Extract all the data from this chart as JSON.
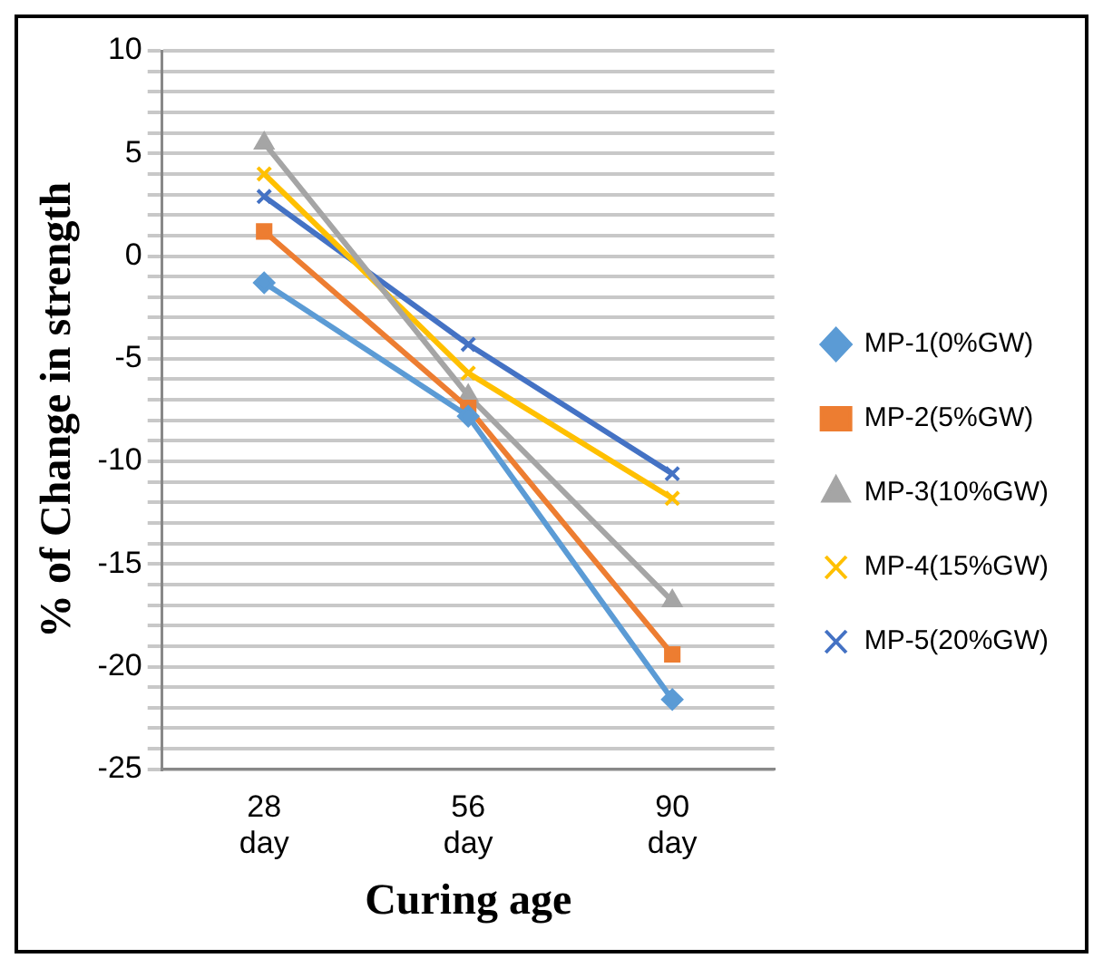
{
  "chart_data": {
    "type": "line",
    "xlabel": "Curing age",
    "ylabel": "% of Change in strength",
    "categories": [
      "28 day",
      "56 day",
      "90 day"
    ],
    "series": [
      {
        "name": "MP-1(0%GW)",
        "color": "#5b9bd5",
        "marker": "diamond",
        "values": [
          -1.3,
          -7.8,
          -21.6
        ]
      },
      {
        "name": "MP-2(5%GW)",
        "color": "#ed7d31",
        "marker": "square",
        "values": [
          1.2,
          -7.4,
          -19.4
        ]
      },
      {
        "name": "MP-3(10%GW)",
        "color": "#a5a5a5",
        "marker": "triangle",
        "values": [
          5.5,
          -6.8,
          -16.8
        ]
      },
      {
        "name": "MP-4(15%GW)",
        "color": "#ffc000",
        "marker": "cross",
        "values": [
          4.0,
          -5.7,
          -11.8
        ]
      },
      {
        "name": "MP-5(20%GW)",
        "color": "#4472c4",
        "marker": "cross",
        "values": [
          2.9,
          -4.3,
          -10.6
        ]
      }
    ],
    "ylim": [
      -25,
      10
    ],
    "yticks": [
      -25,
      {
        "value": -24,
        "label": null
      },
      {
        "value": -23,
        "label": null
      },
      {
        "value": -22,
        "label": null
      },
      {
        "value": -21,
        "label": null
      },
      -20,
      {
        "value": -19,
        "label": null
      },
      {
        "value": -18,
        "label": null
      },
      {
        "value": -17,
        "label": null
      },
      {
        "value": -16,
        "label": null
      },
      -15,
      {
        "value": -14,
        "label": null
      },
      {
        "value": -13,
        "label": null
      },
      {
        "value": -12,
        "label": null
      },
      {
        "value": -11,
        "label": null
      },
      -10,
      {
        "value": -9,
        "label": null
      },
      {
        "value": -8,
        "label": null
      },
      {
        "value": -7,
        "label": null
      },
      {
        "value": -6,
        "label": null
      },
      -5,
      {
        "value": -4,
        "label": null
      },
      {
        "value": -3,
        "label": null
      },
      {
        "value": -2,
        "label": null
      },
      {
        "value": -1,
        "label": null
      },
      0,
      {
        "value": 1,
        "label": null
      },
      {
        "value": 2,
        "label": null
      },
      {
        "value": 3,
        "label": null
      },
      {
        "value": 4,
        "label": null
      },
      5,
      {
        "value": 6,
        "label": null
      },
      {
        "value": 7,
        "label": null
      },
      {
        "value": 8,
        "label": null
      },
      {
        "value": 9,
        "label": null
      },
      10
    ],
    "grid": "y",
    "legend": "right"
  }
}
